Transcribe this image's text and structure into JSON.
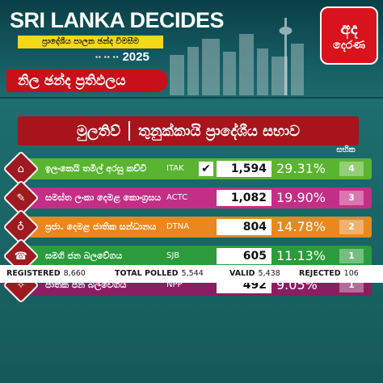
{
  "header": {
    "title": "SRI LANKA DECIDES",
    "subtitle": "ප්‍රාදේශීය පාලන ඡන්ද විමසීම",
    "year": "2025",
    "flags": "▪▪ ▪▪ ▪▪",
    "logo_line1": "අද",
    "logo_line2": "දෙරණ",
    "result_label": "නිල ඡන්ද ප්‍රතිඵලය"
  },
  "heading": {
    "district": "මුලතිව්",
    "council": "තුනුක්කායි ප්‍රාදේශීය සභාව"
  },
  "seats_header": "සභික",
  "parties": [
    {
      "name": "ඉලංකෙයි තමිල් අරසු කච්චි",
      "abbr": "ITAK",
      "votes": "1,594",
      "percent": "29.31%",
      "seats": "4",
      "winner": true,
      "color": "#5bb431",
      "icon": "⌂"
    },
    {
      "name": "සමස්ත ලංකා දෙමළ කොංග්‍රසය",
      "abbr": "ACTC",
      "votes": "1,082",
      "percent": "19.90%",
      "seats": "3",
      "winner": false,
      "color": "#c32f86",
      "icon": "✎"
    },
    {
      "name": "ප්‍රජා. දෙමළ ජාතික සන්ධානය",
      "abbr": "DTNA",
      "votes": "804",
      "percent": "14.78%",
      "seats": "2",
      "winner": false,
      "color": "#e8881e",
      "icon": "♁"
    },
    {
      "name": "සමගි ජන බලවේගය",
      "abbr": "SJB",
      "votes": "605",
      "percent": "11.13%",
      "seats": "1",
      "winner": false,
      "color": "#2b9b3c",
      "icon": "☎"
    },
    {
      "name": "ජාතික ජන බලවේගය",
      "abbr": "NPP",
      "votes": "492",
      "percent": "9.05%",
      "seats": "1",
      "winner": false,
      "color": "#8c1d62",
      "icon": "✧"
    }
  ],
  "check_mark": "✔",
  "summary": {
    "registered_label": "REGISTERED",
    "registered": "8,660",
    "polled_label": "TOTAL POLLED",
    "polled": "5,544",
    "valid_label": "VALID",
    "valid": "5,438",
    "rejected_label": "REJECTED",
    "rejected": "106"
  },
  "colors": {
    "accent_red": "#c8101a",
    "title_yellow": "#f4d91a",
    "background_teal": "#0e4a4d"
  }
}
